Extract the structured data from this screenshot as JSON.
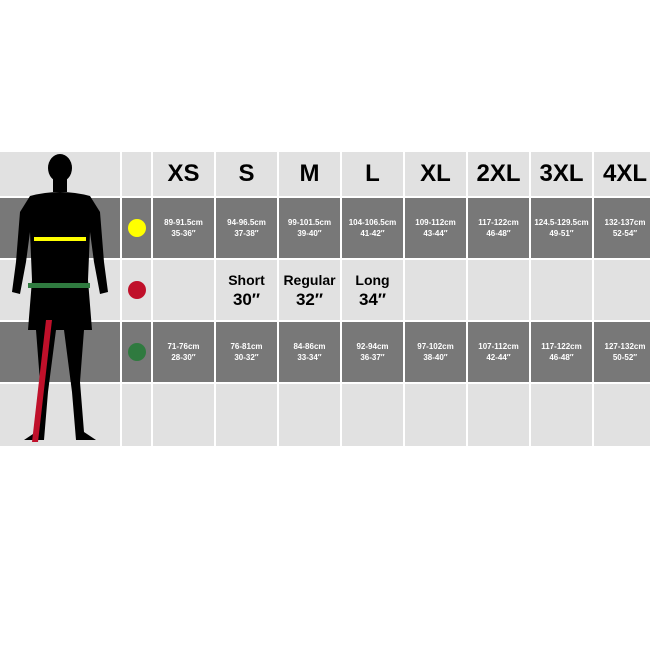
{
  "sizes": [
    "XS",
    "S",
    "M",
    "L",
    "XL",
    "2XL",
    "3XL",
    "4XL"
  ],
  "chest": {
    "color": "#ffff00",
    "values": [
      [
        "89-91.5cm",
        "35-36″"
      ],
      [
        "94-96.5cm",
        "37-38″"
      ],
      [
        "99-101.5cm",
        "39-40″"
      ],
      [
        "104-106.5cm",
        "41-42″"
      ],
      [
        "109-112cm",
        "43-44″"
      ],
      [
        "117-122cm",
        "46-48″"
      ],
      [
        "124.5-129.5cm",
        "49-51″"
      ],
      [
        "132-137cm",
        "52-54″"
      ]
    ]
  },
  "leg": {
    "color": "#c0102a",
    "values": [
      [
        "",
        ""
      ],
      [
        "Short",
        "30″"
      ],
      [
        "Regular",
        "32″"
      ],
      [
        "Long",
        "34″"
      ],
      [
        "",
        ""
      ],
      [
        "",
        ""
      ],
      [
        "",
        ""
      ],
      [
        "",
        ""
      ]
    ]
  },
  "waist": {
    "color": "#2f7a3f",
    "values": [
      [
        "71-76cm",
        "28-30″"
      ],
      [
        "76-81cm",
        "30-32″"
      ],
      [
        "84-86cm",
        "33-34″"
      ],
      [
        "92-94cm",
        "36-37″"
      ],
      [
        "97-102cm",
        "38-40″"
      ],
      [
        "107-112cm",
        "42-44″"
      ],
      [
        "117-122cm",
        "46-48″"
      ],
      [
        "127-132cm",
        "50-52″"
      ]
    ]
  }
}
